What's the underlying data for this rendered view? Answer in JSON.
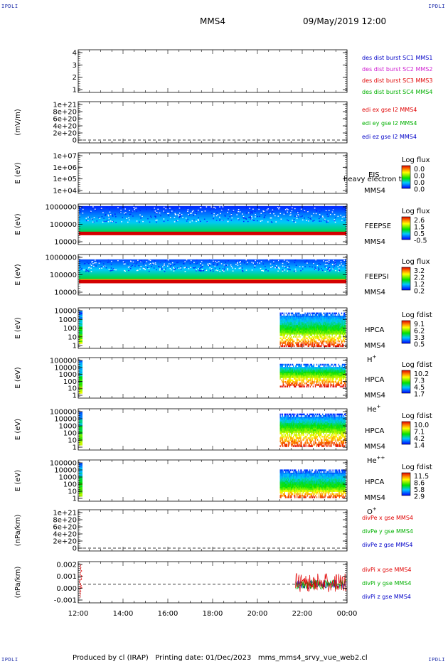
{
  "header": {
    "corner_left_top": "IPDLI",
    "corner_right_top": "IPDLI",
    "corner_left_bottom": "IPDLI",
    "corner_right_bottom": "IPDLI",
    "spacecraft": "MMS4",
    "datetime": "09/May/2019 12:00"
  },
  "footer": {
    "text": "Produced by cl (IRAP)   Printing date: 01/Dec/2023   mms_mms4_srvy_vue_web2.cl"
  },
  "chart_data": {
    "type": "multi-panel",
    "x_axis": {
      "ticks": [
        "12:00",
        "14:00",
        "16:00",
        "18:00",
        "20:00",
        "22:00",
        "00:00"
      ],
      "range_hours": [
        12,
        24
      ]
    },
    "panels": [
      {
        "id": "des",
        "type": "line",
        "ylabel": "",
        "yticks": [
          "1",
          "2",
          "3",
          "4"
        ],
        "legend": [
          {
            "label": "des dist burst SC1 MMS1",
            "color": "#0000c8"
          },
          {
            "label": "des dist burst SC2 MMS2",
            "color": "#d020d0"
          },
          {
            "label": "des dist burst SC3 MMS3",
            "color": "#e00000"
          },
          {
            "label": "des dist burst SC4 MMS4",
            "color": "#00b000"
          }
        ]
      },
      {
        "id": "edi",
        "type": "line",
        "ylabel": "(mV/m)",
        "yticks": [
          "0",
          "2e+20",
          "4e+20",
          "6e+20",
          "8e+20",
          "1e+21"
        ],
        "legend": [
          {
            "label": "edi ex gse l2 MMS4",
            "color": "#e00000"
          },
          {
            "label": "edi ey gse l2 MMS4",
            "color": "#00b000"
          },
          {
            "label": "edi ez gse l2 MMS4",
            "color": "#0000c8"
          }
        ]
      },
      {
        "id": "eis",
        "type": "heatmap",
        "ylabel": "E (eV)",
        "yticks": [
          "1e+04",
          "1e+05",
          "1e+06",
          "1e+07"
        ],
        "instrument": "EIS",
        "overlay_text": "heavy electron to",
        "spacecraft_label": "MMS4",
        "colorbar": {
          "title": "Log flux",
          "ticks": [
            "0.0",
            "0.0",
            "0.0",
            "0.0"
          ]
        }
      },
      {
        "id": "feepse",
        "type": "heatmap",
        "ylabel": "E (eV)",
        "yticks": [
          "10000",
          "100000",
          "1000000"
        ],
        "instrument": "FEEPSE",
        "spacecraft_label": "MMS4",
        "colorbar": {
          "title": "Log flux",
          "ticks": [
            "2.6",
            "1.5",
            "0.5",
            "-0.5"
          ]
        }
      },
      {
        "id": "feepsi",
        "type": "heatmap",
        "ylabel": "E (eV)",
        "yticks": [
          "10000",
          "100000",
          "1000000"
        ],
        "instrument": "FEEPSI",
        "spacecraft_label": "MMS4",
        "colorbar": {
          "title": "Log flux",
          "ticks": [
            "3.2",
            "2.2",
            "1.2",
            "0.2"
          ]
        }
      },
      {
        "id": "hpca_h",
        "type": "heatmap",
        "ylabel": "E (eV)",
        "yticks": [
          "1",
          "10",
          "100",
          "1000",
          "10000"
        ],
        "instrument": "HPCA",
        "spacecraft_label": "MMS4",
        "species": "H",
        "species_sup": "+",
        "colorbar": {
          "title": "Log fdist",
          "ticks": [
            "9.1",
            "6.2",
            "3.3",
            "0.5"
          ]
        }
      },
      {
        "id": "hpca_he",
        "type": "heatmap",
        "ylabel": "E (eV)",
        "yticks": [
          "1",
          "10",
          "100",
          "1000",
          "10000",
          "100000"
        ],
        "instrument": "HPCA",
        "spacecraft_label": "MMS4",
        "species": "He",
        "species_sup": "+",
        "colorbar": {
          "title": "Log fdist",
          "ticks": [
            "10.2",
            "7.3",
            "4.5",
            "1.7"
          ]
        }
      },
      {
        "id": "hpca_hepp",
        "type": "heatmap",
        "ylabel": "E (eV)",
        "yticks": [
          "1",
          "10",
          "100",
          "1000",
          "10000",
          "100000"
        ],
        "instrument": "HPCA",
        "spacecraft_label": "MMS4",
        "species": "He",
        "species_sup": "++",
        "colorbar": {
          "title": "Log fdist",
          "ticks": [
            "10.0",
            "7.1",
            "4.2",
            "1.4"
          ]
        }
      },
      {
        "id": "hpca_o",
        "type": "heatmap",
        "ylabel": "E (eV)",
        "yticks": [
          "1",
          "10",
          "100",
          "1000",
          "10000",
          "100000"
        ],
        "instrument": "HPCA",
        "spacecraft_label": "MMS4",
        "species": "O",
        "species_sup": "+",
        "colorbar": {
          "title": "Log fdist",
          "ticks": [
            "11.5",
            "8.6",
            "5.8",
            "2.9"
          ]
        }
      },
      {
        "id": "divpe",
        "type": "line",
        "ylabel": "(nPa/km)",
        "yticks": [
          "0",
          "2e+20",
          "4e+20",
          "6e+20",
          "8e+20",
          "1e+21"
        ],
        "legend": [
          {
            "label": "divPe x gse MMS4",
            "color": "#e00000"
          },
          {
            "label": "divPe y gse MMS4",
            "color": "#00b000"
          },
          {
            "label": "divPe z gse MMS4",
            "color": "#0000c8"
          }
        ]
      },
      {
        "id": "divpi",
        "type": "line",
        "ylabel": "(nPa/km)",
        "yticks": [
          "-0.001",
          "0.000",
          "0.001",
          "0.002"
        ],
        "legend": [
          {
            "label": "divPi x gse MMS4",
            "color": "#e00000"
          },
          {
            "label": "divPi y gse MMS4",
            "color": "#00b000"
          },
          {
            "label": "divPi z gse MMS4",
            "color": "#0000c8"
          }
        ]
      }
    ]
  }
}
